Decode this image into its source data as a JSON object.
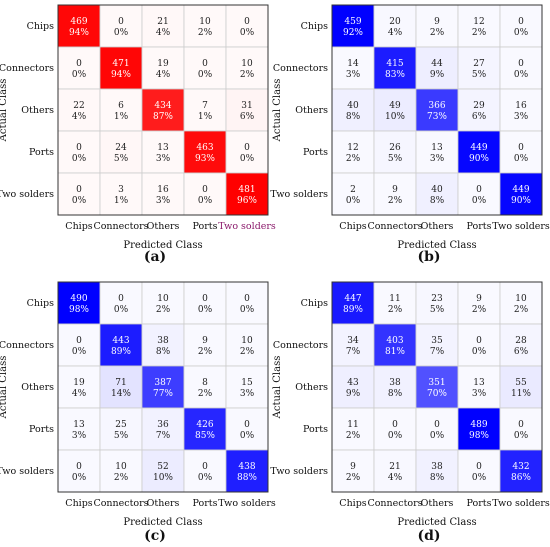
{
  "figure": {
    "colors": {
      "red_high": "#ff0000",
      "blue_high": "#0000ff",
      "grid": "#cccccc"
    }
  },
  "chart_data": [
    {
      "type": "heatmap",
      "panel_label": "(a)",
      "color_scheme": "red",
      "title": "",
      "xlabel": "Predicted Class",
      "ylabel": "Actual Class",
      "categories": [
        "Chips",
        "Connectors",
        "Others",
        "Ports",
        "Two solders"
      ],
      "counts": [
        [
          469,
          0,
          21,
          10,
          0
        ],
        [
          0,
          471,
          19,
          0,
          10
        ],
        [
          22,
          6,
          434,
          7,
          31
        ],
        [
          0,
          24,
          13,
          463,
          0
        ],
        [
          0,
          3,
          16,
          0,
          481
        ]
      ],
      "percents": [
        [
          "94%",
          "0%",
          "4%",
          "2%",
          "0%"
        ],
        [
          "0%",
          "94%",
          "4%",
          "0%",
          "2%"
        ],
        [
          "4%",
          "1%",
          "87%",
          "1%",
          "6%"
        ],
        [
          "0%",
          "5%",
          "3%",
          "93%",
          "0%"
        ],
        [
          "0%",
          "1%",
          "3%",
          "0%",
          "96%"
        ]
      ]
    },
    {
      "type": "heatmap",
      "panel_label": "(b)",
      "color_scheme": "blue",
      "title": "",
      "xlabel": "Predicted Class",
      "ylabel": "Actual Class",
      "categories": [
        "Chips",
        "Connectors",
        "Others",
        "Ports",
        "Two solders"
      ],
      "counts": [
        [
          459,
          20,
          9,
          12,
          0
        ],
        [
          14,
          415,
          44,
          27,
          0
        ],
        [
          40,
          49,
          366,
          29,
          16
        ],
        [
          12,
          26,
          13,
          449,
          0
        ],
        [
          2,
          9,
          40,
          0,
          449
        ]
      ],
      "percents": [
        [
          "92%",
          "4%",
          "2%",
          "2%",
          "0%"
        ],
        [
          "3%",
          "83%",
          "9%",
          "5%",
          "0%"
        ],
        [
          "8%",
          "10%",
          "73%",
          "6%",
          "3%"
        ],
        [
          "2%",
          "5%",
          "3%",
          "90%",
          "0%"
        ],
        [
          "0%",
          "2%",
          "8%",
          "0%",
          "90%"
        ]
      ]
    },
    {
      "type": "heatmap",
      "panel_label": "(c)",
      "color_scheme": "blue",
      "title": "",
      "xlabel": "Predicted Class",
      "ylabel": "Actual Class",
      "categories": [
        "Chips",
        "Connectors",
        "Others",
        "Ports",
        "Two solders"
      ],
      "counts": [
        [
          490,
          0,
          10,
          0,
          0
        ],
        [
          0,
          443,
          38,
          9,
          10
        ],
        [
          19,
          71,
          387,
          8,
          15
        ],
        [
          13,
          25,
          36,
          426,
          0
        ],
        [
          0,
          10,
          52,
          0,
          438
        ]
      ],
      "percents": [
        [
          "98%",
          "0%",
          "2%",
          "0%",
          "0%"
        ],
        [
          "0%",
          "89%",
          "8%",
          "2%",
          "2%"
        ],
        [
          "4%",
          "14%",
          "77%",
          "2%",
          "3%"
        ],
        [
          "3%",
          "5%",
          "7%",
          "85%",
          "0%"
        ],
        [
          "0%",
          "2%",
          "10%",
          "0%",
          "88%"
        ]
      ]
    },
    {
      "type": "heatmap",
      "panel_label": "(d)",
      "color_scheme": "blue",
      "title": "",
      "xlabel": "Predicted Class",
      "ylabel": "Actual Class",
      "categories": [
        "Chips",
        "Connectors",
        "Others",
        "Ports",
        "Two solders"
      ],
      "counts": [
        [
          447,
          11,
          23,
          9,
          10
        ],
        [
          34,
          403,
          35,
          0,
          28
        ],
        [
          43,
          38,
          351,
          13,
          55
        ],
        [
          11,
          0,
          0,
          489,
          0
        ],
        [
          9,
          21,
          38,
          0,
          432
        ]
      ],
      "percents": [
        [
          "89%",
          "2%",
          "5%",
          "2%",
          "2%"
        ],
        [
          "7%",
          "81%",
          "7%",
          "0%",
          "6%"
        ],
        [
          "9%",
          "8%",
          "70%",
          "3%",
          "11%"
        ],
        [
          "2%",
          "0%",
          "0%",
          "98%",
          "0%"
        ],
        [
          "2%",
          "4%",
          "8%",
          "0%",
          "86%"
        ]
      ]
    }
  ]
}
